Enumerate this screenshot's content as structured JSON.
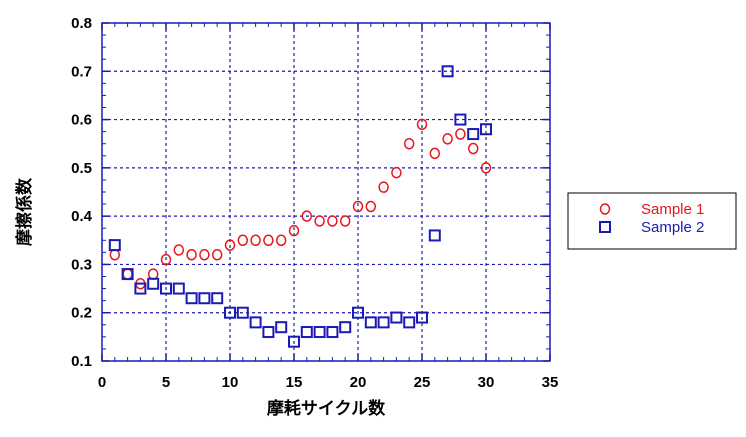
{
  "chart_data": {
    "type": "scatter",
    "title": "",
    "xlabel": "摩耗サイクル数",
    "ylabel": "摩擦係数",
    "xlim": [
      0,
      35
    ],
    "ylim": [
      0.1,
      0.8
    ],
    "xticks": [
      "0",
      "5",
      "10",
      "15",
      "20",
      "25",
      "30",
      "35"
    ],
    "yticks": [
      "0.1",
      "0.2",
      "0.3",
      "0.4",
      "0.5",
      "0.6",
      "0.7",
      "0.8"
    ],
    "grid": true,
    "legend_position": "right",
    "series": [
      {
        "name": "Sample 1",
        "marker": "circle",
        "color": "#e8151b",
        "x": [
          1,
          2,
          3,
          4,
          5,
          6,
          7,
          8,
          9,
          10,
          11,
          12,
          13,
          14,
          15,
          16,
          17,
          18,
          19,
          20,
          21,
          22,
          23,
          24,
          25,
          26,
          27,
          28,
          29,
          30
        ],
        "y": [
          0.32,
          0.28,
          0.26,
          0.28,
          0.31,
          0.33,
          0.32,
          0.32,
          0.32,
          0.34,
          0.35,
          0.35,
          0.35,
          0.35,
          0.37,
          0.4,
          0.39,
          0.39,
          0.39,
          0.42,
          0.42,
          0.46,
          0.49,
          0.55,
          0.59,
          0.53,
          0.56,
          0.57,
          0.54,
          0.5
        ]
      },
      {
        "name": "Sample 2",
        "marker": "square",
        "color": "#1a1ab4",
        "x": [
          1,
          2,
          3,
          4,
          5,
          6,
          7,
          8,
          9,
          10,
          11,
          12,
          13,
          14,
          15,
          16,
          17,
          18,
          19,
          20,
          21,
          22,
          23,
          24,
          25,
          26,
          27,
          28,
          29,
          30
        ],
        "y": [
          0.34,
          0.28,
          0.25,
          0.26,
          0.25,
          0.25,
          0.23,
          0.23,
          0.23,
          0.2,
          0.2,
          0.18,
          0.16,
          0.17,
          0.14,
          0.16,
          0.16,
          0.16,
          0.17,
          0.2,
          0.18,
          0.18,
          0.19,
          0.18,
          0.19,
          0.36,
          0.7,
          0.6,
          0.57,
          0.58
        ]
      }
    ]
  },
  "colors": {
    "frame": "#1a1ab4",
    "grid": "#1a1ab4"
  }
}
